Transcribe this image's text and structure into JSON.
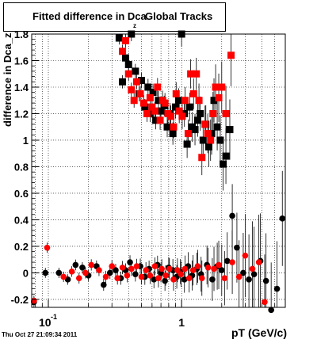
{
  "title": {
    "main": "Fitted difference in Dca",
    "subscript": "z",
    "suffix": "Global Tracks"
  },
  "timestamp": "Thu Oct 27 21:09:34 2011",
  "chart_data": {
    "type": "scatter",
    "title": "Fitted difference in Dca_z Global Tracks",
    "xlabel": "pT (GeV/c)",
    "ylabel": "difference in Dca_z",
    "xscale": "log",
    "xlim": [
      0.075,
      6.0
    ],
    "ylim": [
      -0.26,
      1.8
    ],
    "grid": true,
    "x_tick_labels": [
      "10^-1",
      "1"
    ],
    "y_tick_labels": [
      "-0.2",
      "0",
      "0.2",
      "0.4",
      "0.6",
      "0.8",
      "1",
      "1.2",
      "1.4",
      "1.6",
      "1.8"
    ],
    "series": [
      {
        "color": "#000000",
        "points": [
          [
            0.078,
            -0.22
          ],
          [
            0.095,
            0.0
          ],
          [
            0.12,
            0.0
          ],
          [
            0.14,
            -0.05
          ],
          [
            0.16,
            0.06
          ],
          [
            0.18,
            0.04
          ],
          [
            0.2,
            -0.02
          ],
          [
            0.23,
            0.05
          ],
          [
            0.26,
            -0.09
          ],
          [
            0.29,
            0.0
          ],
          [
            0.32,
            0.02
          ],
          [
            0.35,
            -0.04
          ],
          [
            0.38,
            0.02
          ],
          [
            0.41,
            0.08
          ],
          [
            0.45,
            -0.01
          ],
          [
            0.49,
            0.05
          ],
          [
            0.53,
            -0.03
          ],
          [
            0.57,
            0.03
          ],
          [
            0.62,
            -0.05
          ],
          [
            0.66,
            0.06
          ],
          [
            0.7,
            0.0
          ],
          [
            0.75,
            -0.06
          ],
          [
            0.8,
            0.04
          ],
          [
            0.86,
            0.02
          ],
          [
            0.92,
            -0.03
          ],
          [
            0.98,
            0.01
          ],
          [
            1.05,
            -0.05
          ],
          [
            1.12,
            0.05
          ],
          [
            1.2,
            -0.02
          ],
          [
            1.3,
            0.03
          ],
          [
            1.4,
            -0.01
          ],
          [
            1.55,
            0.06
          ],
          [
            1.7,
            -0.05
          ],
          [
            1.85,
            0.05
          ],
          [
            2.0,
            0.02
          ],
          [
            2.2,
            0.09
          ],
          [
            2.4,
            0.43
          ],
          [
            2.6,
            0.19
          ],
          [
            2.9,
            0.0
          ],
          [
            3.2,
            -0.05
          ],
          [
            3.5,
            -0.01
          ],
          [
            3.9,
            0.09
          ],
          [
            4.3,
            -0.06
          ],
          [
            4.7,
            -0.28
          ],
          [
            5.2,
            -0.12
          ],
          [
            5.7,
            0.41
          ],
          [
            0.34,
            1.77
          ],
          [
            0.36,
            1.44
          ],
          [
            0.38,
            1.62
          ],
          [
            0.4,
            1.57
          ],
          [
            0.42,
            1.8
          ],
          [
            0.45,
            1.52
          ],
          [
            0.48,
            1.35
          ],
          [
            0.5,
            1.45
          ],
          [
            0.53,
            1.25
          ],
          [
            0.56,
            1.4
          ],
          [
            0.58,
            1.2
          ],
          [
            0.61,
            1.36
          ],
          [
            0.64,
            1.15
          ],
          [
            0.67,
            1.3
          ],
          [
            0.7,
            1.22
          ],
          [
            0.74,
            1.26
          ],
          [
            0.78,
            1.1
          ],
          [
            0.82,
            1.2
          ],
          [
            0.86,
            1.05
          ],
          [
            0.9,
            1.25
          ],
          [
            0.95,
            1.3
          ],
          [
            1.0,
            1.8
          ],
          [
            1.05,
            1.2
          ],
          [
            1.1,
            0.97
          ],
          [
            1.15,
            1.25
          ],
          [
            1.2,
            1.1
          ],
          [
            1.26,
            1.08
          ],
          [
            1.32,
            1.15
          ],
          [
            1.38,
            1.2
          ],
          [
            1.45,
            1.0
          ],
          [
            1.52,
            1.12
          ],
          [
            1.6,
            0.95
          ],
          [
            1.68,
            1.05
          ],
          [
            1.75,
            1.3
          ],
          [
            1.85,
            1.1
          ],
          [
            1.95,
            1.0
          ],
          [
            2.05,
            0.82
          ],
          [
            2.15,
            0.88
          ],
          [
            2.3,
            1.08
          ]
        ]
      },
      {
        "color": "#ff0000",
        "points": [
          [
            0.078,
            -0.21
          ],
          [
            0.098,
            0.19
          ],
          [
            0.13,
            -0.03
          ],
          [
            0.15,
            0.01
          ],
          [
            0.17,
            -0.04
          ],
          [
            0.19,
            0.0
          ],
          [
            0.21,
            0.06
          ],
          [
            0.24,
            0.02
          ],
          [
            0.27,
            -0.03
          ],
          [
            0.3,
            0.05
          ],
          [
            0.33,
            -0.04
          ],
          [
            0.36,
            0.04
          ],
          [
            0.39,
            -0.02
          ],
          [
            0.42,
            0.03
          ],
          [
            0.46,
            0.05
          ],
          [
            0.5,
            -0.03
          ],
          [
            0.54,
            0.02
          ],
          [
            0.58,
            -0.02
          ],
          [
            0.63,
            0.05
          ],
          [
            0.67,
            -0.04
          ],
          [
            0.71,
            0.03
          ],
          [
            0.76,
            -0.02
          ],
          [
            0.81,
            0.03
          ],
          [
            0.87,
            -0.05
          ],
          [
            0.93,
            0.02
          ],
          [
            0.99,
            -0.01
          ],
          [
            1.06,
            0.03
          ],
          [
            1.14,
            -0.04
          ],
          [
            1.22,
            0.02
          ],
          [
            1.32,
            0.05
          ],
          [
            1.42,
            -0.04
          ],
          [
            1.58,
            0.04
          ],
          [
            1.75,
            0.03
          ],
          [
            1.9,
            0.06
          ],
          [
            2.1,
            -0.04
          ],
          [
            2.4,
            0.08
          ],
          [
            2.7,
            -0.03
          ],
          [
            3.0,
            0.13
          ],
          [
            3.4,
            0.03
          ],
          [
            3.8,
            0.08
          ],
          [
            4.2,
            -0.22
          ],
          [
            0.36,
            1.67
          ],
          [
            0.38,
            1.75
          ],
          [
            0.4,
            1.5
          ],
          [
            0.42,
            1.38
          ],
          [
            0.44,
            1.3
          ],
          [
            0.46,
            1.44
          ],
          [
            0.49,
            1.35
          ],
          [
            0.52,
            1.28
          ],
          [
            0.55,
            1.2
          ],
          [
            0.58,
            1.32
          ],
          [
            0.6,
            1.25
          ],
          [
            0.63,
            1.22
          ],
          [
            0.66,
            1.4
          ],
          [
            0.69,
            1.15
          ],
          [
            0.72,
            1.3
          ],
          [
            0.75,
            1.28
          ],
          [
            0.79,
            1.2
          ],
          [
            0.83,
            1.18
          ],
          [
            0.87,
            1.1
          ],
          [
            0.91,
            1.35
          ],
          [
            0.96,
            1.22
          ],
          [
            1.01,
            1.18
          ],
          [
            1.06,
            1.3
          ],
          [
            1.12,
            1.05
          ],
          [
            1.17,
            1.5
          ],
          [
            1.23,
            1.35
          ],
          [
            1.29,
            1.5
          ],
          [
            1.35,
            1.3
          ],
          [
            1.42,
            0.87
          ],
          [
            1.5,
            1.12
          ],
          [
            1.57,
            1.05
          ],
          [
            1.65,
            1.0
          ],
          [
            1.72,
            1.2
          ],
          [
            1.8,
            1.4
          ],
          [
            1.9,
            1.32
          ],
          [
            2.0,
            1.4
          ],
          [
            2.15,
            1.2
          ],
          [
            2.35,
            1.64
          ]
        ]
      }
    ]
  }
}
